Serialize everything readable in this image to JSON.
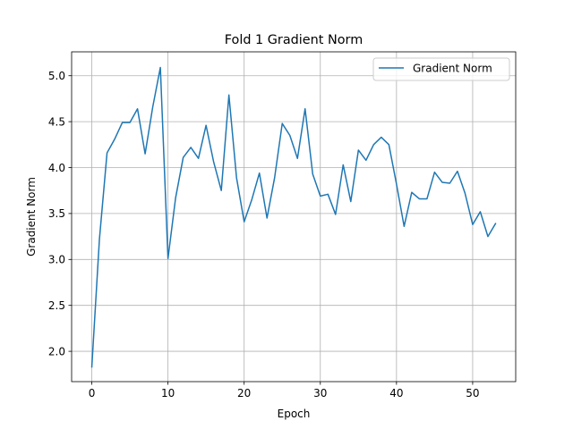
{
  "chart_data": {
    "type": "line",
    "title": "Fold 1 Gradient Norm",
    "xlabel": "Epoch",
    "ylabel": "Gradient Norm",
    "xlim": [
      -2.65,
      55.65
    ],
    "ylim": [
      1.67,
      5.26
    ],
    "xticks": [
      0,
      10,
      20,
      30,
      40,
      50
    ],
    "yticks": [
      2.0,
      2.5,
      3.0,
      3.5,
      4.0,
      4.5,
      5.0
    ],
    "grid": true,
    "legend_position": "top-right",
    "series": [
      {
        "name": "Gradient Norm",
        "color": "#1f77b4",
        "x": [
          0,
          1,
          2,
          3,
          4,
          5,
          6,
          7,
          8,
          9,
          10,
          11,
          12,
          13,
          14,
          15,
          16,
          17,
          18,
          19,
          20,
          21,
          22,
          23,
          24,
          25,
          26,
          27,
          28,
          29,
          30,
          31,
          32,
          33,
          34,
          35,
          36,
          37,
          38,
          39,
          40,
          41,
          42,
          43,
          44,
          45,
          46,
          47,
          48,
          49,
          50,
          51,
          52,
          53
        ],
        "y": [
          1.83,
          3.22,
          4.16,
          4.31,
          4.49,
          4.49,
          4.64,
          4.15,
          4.66,
          5.09,
          3.01,
          3.67,
          4.11,
          4.22,
          4.1,
          4.46,
          4.06,
          3.75,
          4.79,
          3.89,
          3.41,
          3.65,
          3.94,
          3.45,
          3.89,
          4.48,
          4.35,
          4.1,
          4.64,
          3.93,
          3.69,
          3.71,
          3.49,
          4.03,
          3.63,
          4.19,
          4.08,
          4.25,
          4.33,
          4.25,
          3.82,
          3.36,
          3.73,
          3.66,
          3.66,
          3.95,
          3.84,
          3.83,
          3.96,
          3.72,
          3.38,
          3.52,
          3.25,
          3.39
        ]
      }
    ]
  }
}
